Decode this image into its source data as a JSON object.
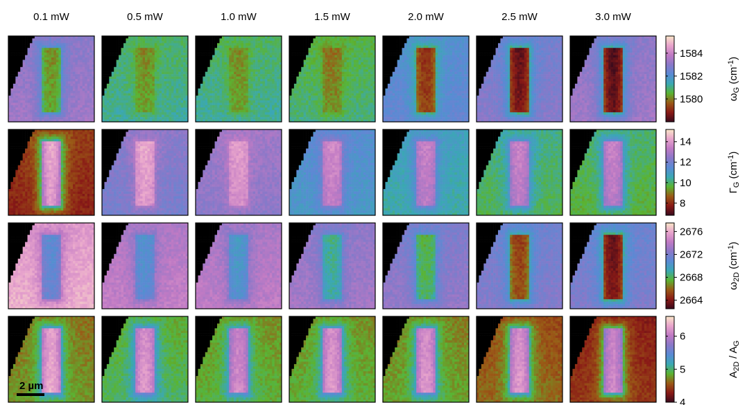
{
  "chart_data": {
    "type": "heatmap",
    "columns": [
      "0.1 mW",
      "0.5 mW",
      "1.0 mW",
      "1.5 mW",
      "2.0 mW",
      "2.5 mW",
      "3.0 mW"
    ],
    "colormap": [
      "#3a0a1c",
      "#8a1a16",
      "#9a5a16",
      "#5ab432",
      "#3aa8b4",
      "#5a8ad4",
      "#8a78c8",
      "#c07ac4",
      "#e8a4cc",
      "#fae6c8"
    ],
    "scale_bar": "2 µm",
    "rows": [
      {
        "label_main": "ω",
        "label_sub": "G",
        "label_unit": " (cm",
        "label_exp": "-1",
        "label_close": ")",
        "range": [
          1578,
          1585.5
        ],
        "ticks": [
          {
            "value": 1584,
            "label": "1584"
          },
          {
            "value": 1582,
            "label": "1582"
          },
          {
            "value": 1580,
            "label": "1580"
          }
        ],
        "background": [
          1583.2,
          1581.0,
          1581.0,
          1580.8,
          1582.2,
          1582.8,
          1583.2
        ],
        "bar": [
          1580.2,
          1580.2,
          1580.2,
          1580.0,
          1579.2,
          1578.5,
          1578.3
        ]
      },
      {
        "label_main": "Γ",
        "label_sub": "G",
        "label_unit": " (cm",
        "label_exp": "-1",
        "label_close": ")",
        "range": [
          6.8,
          15.2
        ],
        "ticks": [
          {
            "value": 14,
            "label": "14"
          },
          {
            "value": 12,
            "label": "12"
          },
          {
            "value": 10,
            "label": "10"
          },
          {
            "value": 8,
            "label": "8"
          }
        ],
        "background": [
          8.0,
          12.2,
          12.6,
          11.2,
          10.6,
          10.0,
          9.8
        ],
        "bar": [
          14.2,
          14.2,
          14.0,
          13.6,
          13.4,
          13.4,
          13.4
        ]
      },
      {
        "label_main": "ω",
        "label_sub": "2D",
        "label_unit": " (cm",
        "label_exp": "-1",
        "label_close": ")",
        "range": [
          2662.5,
          2677.5
        ],
        "ticks": [
          {
            "value": 2676,
            "label": "2676"
          },
          {
            "value": 2672,
            "label": "2672"
          },
          {
            "value": 2668,
            "label": "2668"
          },
          {
            "value": 2664,
            "label": "2664"
          }
        ],
        "background": [
          2675.8,
          2674.0,
          2673.8,
          2673.0,
          2672.4,
          2672.0,
          2671.8
        ],
        "bar": [
          2671.0,
          2670.6,
          2670.2,
          2668.8,
          2667.8,
          2665.2,
          2663.6
        ]
      },
      {
        "label_main": "A",
        "label_sub": "2D",
        "label_unit": " / A",
        "label_exp": "",
        "label_close": "",
        "label_sub2": "G",
        "range": [
          4.0,
          6.6
        ],
        "ticks": [
          {
            "value": 6,
            "label": "6"
          },
          {
            "value": 5,
            "label": "5"
          },
          {
            "value": 4,
            "label": "4"
          }
        ],
        "background": [
          4.7,
          4.9,
          4.8,
          4.8,
          4.75,
          4.55,
          4.35
        ],
        "bar": [
          6.3,
          6.2,
          6.1,
          6.2,
          6.2,
          6.2,
          6.1
        ]
      }
    ]
  }
}
